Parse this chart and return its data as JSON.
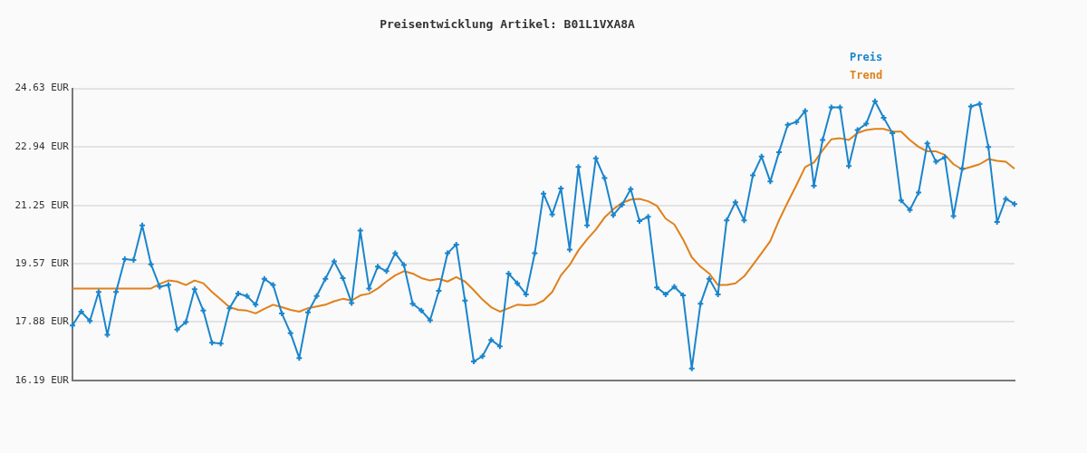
{
  "chart_data": {
    "type": "line",
    "title": "Preisentwicklung Artikel: B01L1VXA8A",
    "categories": [
      null,
      null,
      null,
      null,
      null,
      null,
      null,
      null,
      null,
      null,
      null,
      null,
      null,
      null,
      null,
      null,
      null,
      null,
      null,
      null,
      null,
      null,
      null,
      null,
      null,
      null,
      null,
      null,
      null,
      null,
      null,
      null,
      null,
      null,
      null,
      null,
      null,
      null,
      null,
      null,
      null,
      null,
      null,
      null,
      null,
      null,
      null,
      null,
      null,
      null,
      null,
      null,
      null,
      null,
      null,
      null,
      null,
      null,
      null,
      null,
      null,
      null,
      null,
      null,
      null,
      null,
      null,
      null,
      null,
      null,
      null,
      null,
      null,
      null,
      null,
      null,
      null,
      null,
      null,
      null,
      null,
      null,
      null,
      null,
      null,
      null,
      null,
      null,
      null,
      null,
      null,
      null,
      null,
      null,
      null,
      null,
      null,
      null,
      null,
      null,
      null,
      null,
      null,
      null,
      null,
      null,
      null,
      null,
      null
    ],
    "series": [
      {
        "name": "Preis",
        "color": "#1a85cc",
        "marker": "cross",
        "values": [
          17.78,
          18.18,
          17.91,
          18.75,
          17.51,
          18.75,
          19.7,
          19.67,
          20.67,
          19.55,
          18.9,
          18.95,
          17.66,
          17.88,
          18.83,
          18.21,
          17.28,
          17.26,
          18.28,
          18.7,
          18.63,
          18.38,
          19.13,
          18.95,
          18.13,
          17.56,
          16.84,
          18.16,
          18.63,
          19.13,
          19.63,
          19.15,
          18.43,
          20.52,
          18.85,
          19.48,
          19.35,
          19.87,
          19.53,
          18.41,
          18.21,
          17.93,
          18.78,
          19.87,
          20.12,
          18.5,
          16.74,
          16.89,
          17.36,
          17.18,
          19.28,
          19.0,
          18.68,
          19.87,
          21.59,
          20.99,
          21.74,
          19.97,
          22.36,
          20.67,
          22.61,
          22.04,
          20.97,
          21.27,
          21.72,
          20.8,
          20.92,
          18.88,
          18.68,
          18.9,
          18.65,
          16.54,
          18.41,
          19.13,
          18.68,
          20.82,
          21.34,
          20.82,
          22.12,
          22.66,
          21.94,
          22.79,
          23.58,
          23.66,
          23.98,
          21.82,
          23.14,
          24.08,
          24.08,
          22.39,
          23.43,
          23.61,
          24.26,
          23.78,
          23.34,
          21.39,
          21.12,
          21.62,
          23.04,
          22.51,
          22.64,
          20.94,
          22.31,
          24.11,
          24.18,
          22.94,
          20.77,
          21.44,
          21.29
        ]
      },
      {
        "name": "Trend",
        "color": "#e0801a",
        "marker": "none",
        "values": [
          18.85,
          18.85,
          18.85,
          18.85,
          18.85,
          18.85,
          18.85,
          18.85,
          18.85,
          18.85,
          18.98,
          19.08,
          19.05,
          18.95,
          19.08,
          19.0,
          18.75,
          18.53,
          18.31,
          18.23,
          18.21,
          18.13,
          18.26,
          18.38,
          18.31,
          18.23,
          18.18,
          18.28,
          18.33,
          18.38,
          18.48,
          18.55,
          18.5,
          18.65,
          18.7,
          18.85,
          19.05,
          19.23,
          19.35,
          19.28,
          19.15,
          19.08,
          19.13,
          19.05,
          19.18,
          19.05,
          18.8,
          18.53,
          18.31,
          18.18,
          18.28,
          18.38,
          18.36,
          18.38,
          18.5,
          18.75,
          19.23,
          19.53,
          19.95,
          20.27,
          20.55,
          20.9,
          21.14,
          21.32,
          21.42,
          21.44,
          21.37,
          21.24,
          20.87,
          20.7,
          20.27,
          19.75,
          19.48,
          19.28,
          18.95,
          18.95,
          19.0,
          19.2,
          19.53,
          19.87,
          20.22,
          20.82,
          21.34,
          21.84,
          22.36,
          22.49,
          22.84,
          23.16,
          23.19,
          23.14,
          23.34,
          23.43,
          23.46,
          23.46,
          23.38,
          23.38,
          23.14,
          22.94,
          22.81,
          22.81,
          22.71,
          22.44,
          22.29,
          22.36,
          22.44,
          22.59,
          22.54,
          22.51,
          22.31
        ]
      }
    ],
    "ylim": [
      16.19,
      24.63
    ],
    "yticks": [
      {
        "value": 16.19,
        "label": "16.19 EUR"
      },
      {
        "value": 17.88,
        "label": "17.88 EUR"
      },
      {
        "value": 19.57,
        "label": "19.57 EUR"
      },
      {
        "value": 21.25,
        "label": "21.25 EUR"
      },
      {
        "value": 22.94,
        "label": "22.94 EUR"
      },
      {
        "value": 24.63,
        "label": "24.63 EUR"
      }
    ],
    "grid": "y",
    "legend": "top right",
    "tick_labels": "y",
    "line_style": "solid"
  }
}
